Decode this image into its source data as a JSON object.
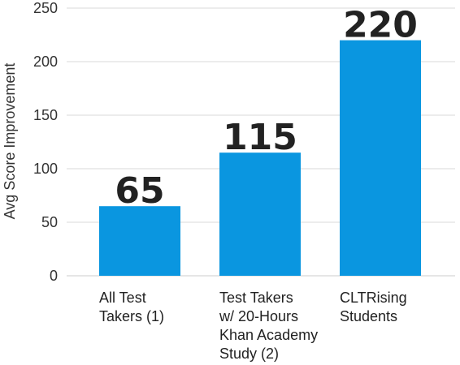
{
  "chart_data": {
    "type": "bar",
    "categories": [
      [
        "All Test",
        "Takers (1)"
      ],
      [
        "Test Takers",
        "w/ 20-Hours",
        "Khan Academy",
        "Study (2)"
      ],
      [
        "CLTRising",
        "Students"
      ]
    ],
    "values": [
      65,
      115,
      220
    ],
    "data_labels": [
      "65",
      "115",
      "220"
    ],
    "ylabel": "Avg Score Improvement",
    "ylim": [
      0,
      250
    ],
    "yticks": [
      0,
      50,
      100,
      150,
      200,
      250
    ],
    "grid": true,
    "bar_color": "#0a96e0"
  }
}
